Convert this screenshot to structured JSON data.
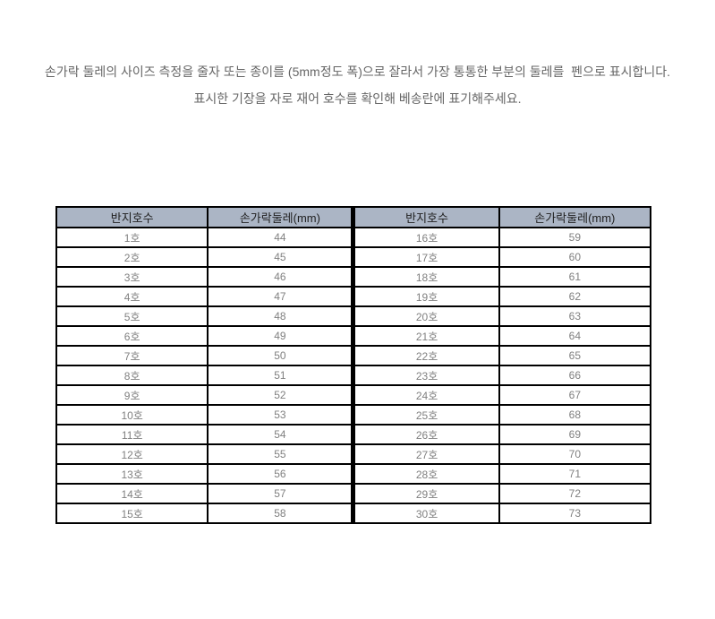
{
  "instructions": {
    "line1": "손가락 둘레의 사이즈 측정을 줄자 또는 종이를 (5mm정도 폭)으로 잘라서 가장 통통한 부분의 둘레를  펜으로 표시합니다.",
    "line2": "표시한 기장을 자로 재어 호수를 확인해 베송란에 표기해주세요."
  },
  "table": {
    "headers": [
      "반지호수",
      "손가락둘레(mm)",
      "반지호수",
      "손가락둘레(mm)"
    ],
    "rows": [
      [
        "1호",
        "44",
        "16호",
        "59"
      ],
      [
        "2호",
        "45",
        "17호",
        "60"
      ],
      [
        "3호",
        "46",
        "18호",
        "61"
      ],
      [
        "4호",
        "47",
        "19호",
        "62"
      ],
      [
        "5호",
        "48",
        "20호",
        "63"
      ],
      [
        "6호",
        "49",
        "21호",
        "64"
      ],
      [
        "7호",
        "50",
        "22호",
        "65"
      ],
      [
        "8호",
        "51",
        "23호",
        "66"
      ],
      [
        "9호",
        "52",
        "24호",
        "67"
      ],
      [
        "10호",
        "53",
        "25호",
        "68"
      ],
      [
        "11호",
        "54",
        "26호",
        "69"
      ],
      [
        "12호",
        "55",
        "27호",
        "70"
      ],
      [
        "13호",
        "56",
        "28호",
        "71"
      ],
      [
        "14호",
        "57",
        "29호",
        "72"
      ],
      [
        "15호",
        "58",
        "30호",
        "73"
      ]
    ]
  },
  "colors": {
    "page_bg": "#ffffff",
    "header_bg": "#abb5c5",
    "border": "#000000",
    "header_text": "#1f1f1f",
    "cell_text": "#808080",
    "instructions_text": "#666666"
  }
}
